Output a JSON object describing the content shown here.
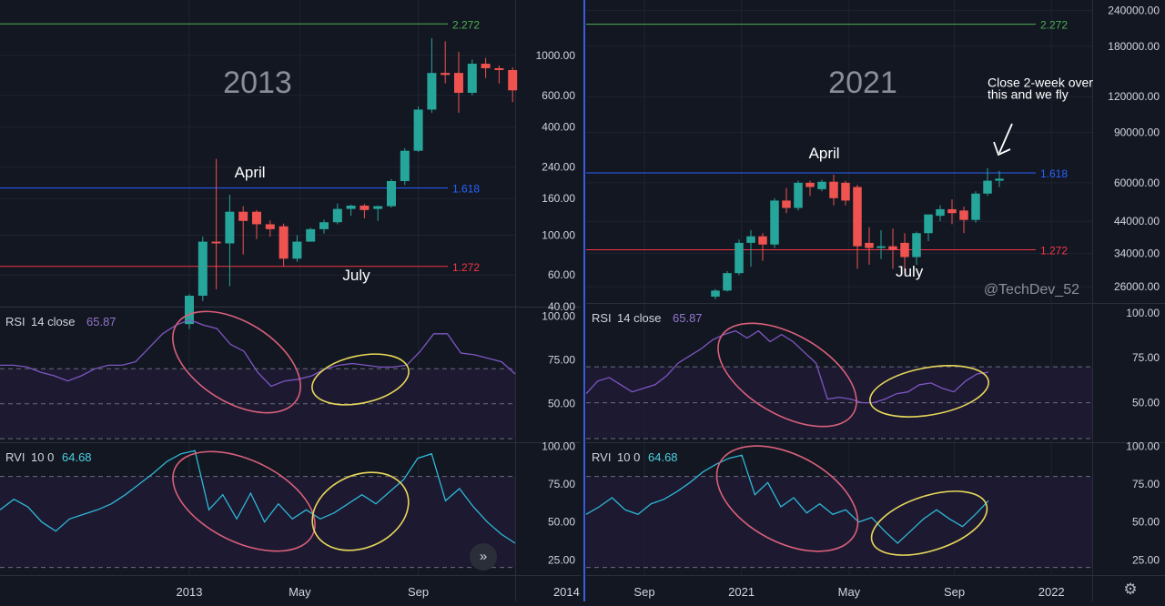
{
  "colors": {
    "bg": "#131722",
    "grid": "#1f2330",
    "separator": "#2a2e39",
    "axis_text": "#d1d4dc",
    "up": "#26a69a",
    "down": "#ef5350",
    "fib_green": "#4caf50",
    "fib_blue": "#2962ff",
    "fib_red": "#f23645",
    "rsi_line": "#7e57c2",
    "rvi_line": "#2fb8d6",
    "pink_ellipse": "#d9607a",
    "yellow_ellipse": "#e8d85a",
    "band_fill": "#1e1a33",
    "divider": "#3b5bdb"
  },
  "icons": {
    "fast_forward": "double-chevron-right-icon",
    "settings": "gear-icon"
  },
  "chart_data": [
    {
      "type": "candlestick",
      "title": "2013",
      "price_scale": "log",
      "y_ticks": [
        "1000.00",
        "600.00",
        "400.00",
        "240.00",
        "160.00",
        "100.00",
        "60.00",
        "40.00"
      ],
      "y_tick_values": [
        1000,
        600,
        400,
        240,
        160,
        100,
        60,
        40
      ],
      "ylim": [
        40,
        1900
      ],
      "x_ticks": [
        "2013",
        "May",
        "Sep",
        "2014"
      ],
      "x_tick_index": [
        0,
        8.2,
        17,
        28
      ],
      "fib_levels": [
        {
          "label": "2.272",
          "value": 1500,
          "color": "#4caf50"
        },
        {
          "label": "1.618",
          "value": 183,
          "color": "#2962ff"
        },
        {
          "label": "1.272",
          "value": 67,
          "color": "#f23645"
        }
      ],
      "annotations": [
        {
          "text": "April",
          "at_index": 4.5,
          "at_value": 210
        },
        {
          "text": "July",
          "at_index": 12.4,
          "at_value": 56
        }
      ],
      "candles": [
        {
          "o": 32,
          "h": 47,
          "c": 46,
          "l": 30
        },
        {
          "o": 46,
          "h": 98,
          "c": 92,
          "l": 43
        },
        {
          "o": 92,
          "h": 266,
          "c": 90,
          "l": 50
        },
        {
          "o": 90,
          "h": 168,
          "c": 135,
          "l": 52
        },
        {
          "o": 135,
          "h": 145,
          "c": 120,
          "l": 78
        },
        {
          "o": 135,
          "h": 138,
          "c": 115,
          "l": 95
        },
        {
          "o": 115,
          "h": 121,
          "c": 108,
          "l": 98
        },
        {
          "o": 112,
          "h": 116,
          "c": 74,
          "l": 67
        },
        {
          "o": 74,
          "h": 100,
          "c": 92,
          "l": 71
        },
        {
          "o": 92,
          "h": 110,
          "c": 108,
          "l": 94
        },
        {
          "o": 108,
          "h": 122,
          "c": 118,
          "l": 102
        },
        {
          "o": 118,
          "h": 150,
          "c": 140,
          "l": 115
        },
        {
          "o": 140,
          "h": 148,
          "c": 146,
          "l": 128
        },
        {
          "o": 146,
          "h": 149,
          "c": 138,
          "l": 124
        },
        {
          "o": 140,
          "h": 146,
          "c": 145,
          "l": 120
        },
        {
          "o": 145,
          "h": 205,
          "c": 200,
          "l": 142
        },
        {
          "o": 200,
          "h": 305,
          "c": 295,
          "l": 190
        },
        {
          "o": 295,
          "h": 520,
          "c": 500,
          "l": 290
        },
        {
          "o": 500,
          "h": 1250,
          "c": 800,
          "l": 480
        },
        {
          "o": 800,
          "h": 1200,
          "c": 780,
          "l": 700
        },
        {
          "o": 800,
          "h": 1050,
          "c": 620,
          "l": 480
        },
        {
          "o": 620,
          "h": 950,
          "c": 900,
          "l": 600
        },
        {
          "o": 900,
          "h": 970,
          "c": 850,
          "l": 750
        },
        {
          "o": 850,
          "h": 880,
          "c": 830,
          "l": 700
        },
        {
          "o": 830,
          "h": 860,
          "c": 640,
          "l": 550
        }
      ],
      "indicators": [
        {
          "label": "RSI",
          "params": "14 close",
          "value": "65.87",
          "y_ticks": [
            "100.00",
            "75.00",
            "50.00"
          ],
          "y_tick_values": [
            100,
            75,
            50
          ],
          "ylim": [
            28,
            105
          ],
          "bands": [
            70,
            50,
            30
          ],
          "values": [
            72,
            72,
            71,
            68,
            66,
            63,
            66,
            70,
            72,
            72,
            74,
            82,
            90,
            95,
            98,
            95,
            93,
            84,
            80,
            68,
            60,
            63,
            64,
            66,
            70,
            72,
            73,
            72,
            71,
            71,
            72,
            80,
            90,
            90,
            79,
            78,
            76,
            74,
            67
          ]
        },
        {
          "label": "RVI",
          "params": "10 0",
          "value": "64.68",
          "y_ticks": [
            "100.00",
            "75.00",
            "50.00",
            "25.00"
          ],
          "y_tick_values": [
            100,
            75,
            50,
            25
          ],
          "ylim": [
            15,
            102
          ],
          "bands": [
            80,
            20
          ],
          "values": [
            58,
            65,
            60,
            50,
            44,
            52,
            55,
            58,
            62,
            68,
            75,
            82,
            90,
            95,
            97,
            58,
            68,
            52,
            69,
            50,
            62,
            52,
            58,
            52,
            56,
            62,
            68,
            62,
            70,
            78,
            92,
            95,
            64,
            72,
            60,
            50,
            42,
            36
          ]
        }
      ]
    },
    {
      "type": "candlestick",
      "title": "2021",
      "price_scale": "log",
      "y_ticks": [
        "240000.00",
        "180000.00",
        "120000.00",
        "90000.00",
        "60000.00",
        "44000.00",
        "34000.00",
        "26000.00"
      ],
      "y_tick_values": [
        240000,
        180000,
        120000,
        90000,
        60000,
        44000,
        34000,
        26000
      ],
      "ylim": [
        22800,
        250000
      ],
      "x_ticks": [
        "Sep",
        "2021",
        "May",
        "Sep",
        "2022"
      ],
      "x_tick_index": [
        -6,
        2.2,
        11.3,
        20.2,
        28.4
      ],
      "fib_levels": [
        {
          "label": "2.272",
          "value": 215000,
          "color": "#4caf50"
        },
        {
          "label": "1.618",
          "value": 65000,
          "color": "#2962ff"
        },
        {
          "label": "1.272",
          "value": 35000,
          "color": "#f23645"
        }
      ],
      "annotations": [
        {
          "text": "April",
          "at_index": 9.2,
          "at_value": 73000
        },
        {
          "text": "July",
          "at_index": 16.4,
          "at_value": 28200
        },
        {
          "text": "Close 2-week over",
          "at_index": 23,
          "at_value": 130000
        },
        {
          "text": "this and we fly",
          "at_index": 23,
          "at_value": 118000
        }
      ],
      "watermark": "@TechDev_52",
      "candles": [
        {
          "o": 24000,
          "h": 25500,
          "c": 25200,
          "l": 23500
        },
        {
          "o": 25200,
          "h": 29500,
          "c": 29000,
          "l": 25000
        },
        {
          "o": 29000,
          "h": 38000,
          "c": 37000,
          "l": 28500
        },
        {
          "o": 37000,
          "h": 41000,
          "c": 39000,
          "l": 30500
        },
        {
          "o": 39000,
          "h": 40000,
          "c": 36500,
          "l": 32000
        },
        {
          "o": 36500,
          "h": 53000,
          "c": 52000,
          "l": 35500
        },
        {
          "o": 52000,
          "h": 57500,
          "c": 49000,
          "l": 47000
        },
        {
          "o": 49000,
          "h": 61000,
          "c": 60000,
          "l": 48000
        },
        {
          "o": 60000,
          "h": 61000,
          "c": 58000,
          "l": 54000
        },
        {
          "o": 57000,
          "h": 61500,
          "c": 60500,
          "l": 56000
        },
        {
          "o": 60500,
          "h": 64000,
          "c": 53000,
          "l": 50000
        },
        {
          "o": 60000,
          "h": 61000,
          "c": 52000,
          "l": 50000
        },
        {
          "o": 58000,
          "h": 59000,
          "c": 36000,
          "l": 30000
        },
        {
          "o": 37000,
          "h": 42000,
          "c": 35500,
          "l": 31000
        },
        {
          "o": 35500,
          "h": 41000,
          "c": 36000,
          "l": 32500
        },
        {
          "o": 36000,
          "h": 41500,
          "c": 35000,
          "l": 30000
        },
        {
          "o": 37000,
          "h": 40000,
          "c": 33000,
          "l": 29000
        },
        {
          "o": 33000,
          "h": 40500,
          "c": 40000,
          "l": 31000
        },
        {
          "o": 40000,
          "h": 46000,
          "c": 46500,
          "l": 37500
        },
        {
          "o": 46000,
          "h": 50000,
          "c": 48500,
          "l": 44000
        },
        {
          "o": 48500,
          "h": 52500,
          "c": 47000,
          "l": 43000
        },
        {
          "o": 48000,
          "h": 49500,
          "c": 44500,
          "l": 40000
        },
        {
          "o": 44500,
          "h": 56000,
          "c": 55000,
          "l": 43500
        },
        {
          "o": 55000,
          "h": 67500,
          "c": 61000,
          "l": 54000
        },
        {
          "o": 61000,
          "h": 66000,
          "c": 62000,
          "l": 58000
        }
      ],
      "indicators": [
        {
          "label": "RSI",
          "params": "14 close",
          "value": "65.87",
          "y_ticks": [
            "100.00",
            "75.00",
            "50.00"
          ],
          "y_tick_values": [
            100,
            75,
            50
          ],
          "ylim": [
            28,
            105
          ],
          "bands": [
            70,
            50,
            30
          ],
          "values": [
            55,
            62,
            64,
            60,
            56,
            58,
            60,
            65,
            72,
            76,
            80,
            85,
            88,
            90,
            86,
            90,
            84,
            88,
            84,
            78,
            72,
            52,
            53,
            52,
            50,
            50,
            52,
            55,
            56,
            60,
            61,
            58,
            56,
            62,
            66,
            67
          ]
        },
        {
          "label": "RVI",
          "params": "10 0",
          "value": "64.68",
          "y_ticks": [
            "100.00",
            "75.00",
            "50.00",
            "25.00"
          ],
          "y_tick_values": [
            100,
            75,
            50,
            25
          ],
          "ylim": [
            15,
            102
          ],
          "bands": [
            80,
            20
          ],
          "values": [
            55,
            60,
            66,
            58,
            55,
            62,
            65,
            70,
            76,
            83,
            88,
            92,
            94,
            68,
            76,
            60,
            66,
            56,
            62,
            55,
            58,
            50,
            53,
            44,
            36,
            44,
            52,
            58,
            52,
            47,
            55,
            64
          ]
        }
      ]
    }
  ],
  "annotation_notes": {
    "left": {
      "pink_ellipse_idx": [
        13,
        20
      ],
      "yellow_ellipse_idx": [
        21,
        29
      ]
    },
    "right": {
      "pink_ellipse_idx": [
        9,
        20
      ],
      "yellow_ellipse_idx": [
        22,
        30
      ]
    }
  }
}
